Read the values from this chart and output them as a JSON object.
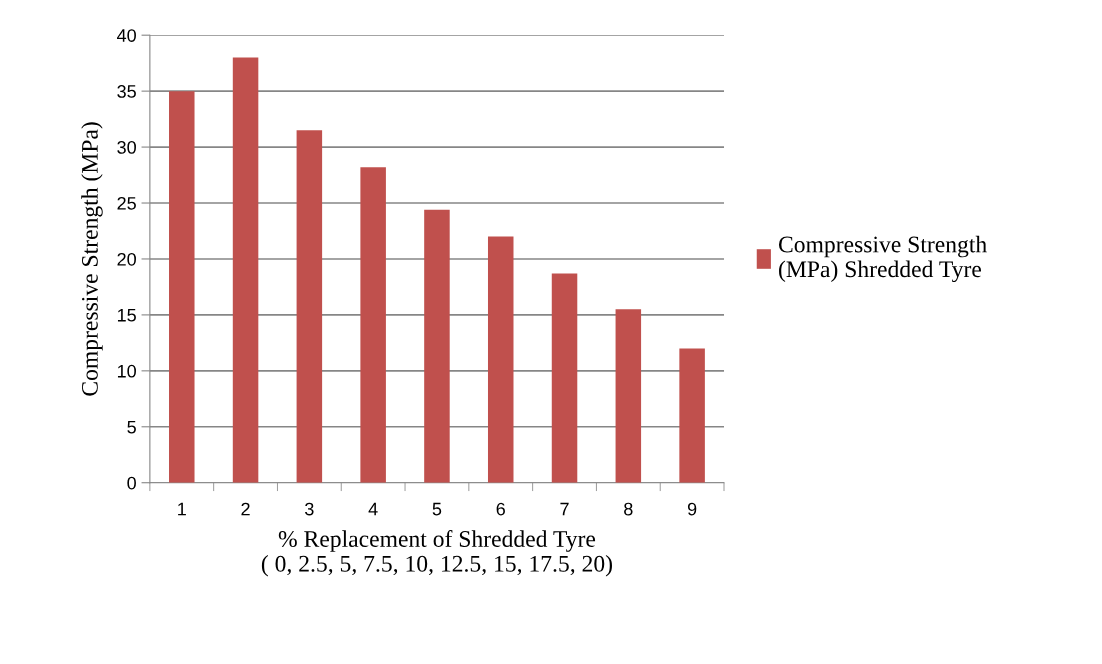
{
  "chart_data": {
    "type": "bar",
    "xlabel": "% Replacement of Shredded Tyre\n( 0, 2.5, 5, 7.5, 10, 12.5, 15, 17.5, 20)",
    "ylabel": "Compressive Strength (MPa)",
    "categories": [
      "1",
      "2",
      "3",
      "4",
      "5",
      "6",
      "7",
      "8",
      "9"
    ],
    "series": [
      {
        "name": "Compressive Strength\n(MPa) Shredded Tyre",
        "color": "#c0504d",
        "values": [
          35,
          38,
          31.5,
          28.2,
          24.4,
          22,
          18.7,
          15.5,
          12
        ]
      }
    ],
    "ylim": [
      0,
      40
    ],
    "yticks": [
      0,
      5,
      10,
      15,
      20,
      25,
      30,
      35,
      40
    ],
    "grid": "y",
    "legend": "right"
  }
}
